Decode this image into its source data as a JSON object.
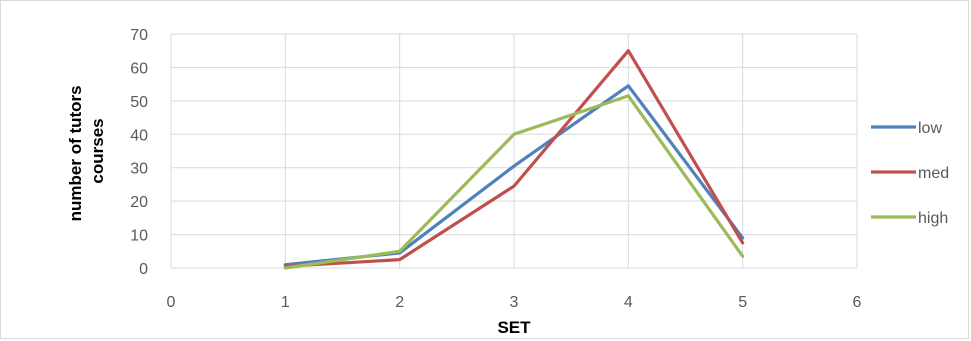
{
  "chart_data": {
    "type": "line",
    "title": "",
    "xlabel": "SET",
    "ylabel_lines": [
      "number of tutors",
      "courses"
    ],
    "xlim": [
      0,
      6
    ],
    "ylim": [
      0,
      70
    ],
    "xticks": [
      0,
      1,
      2,
      3,
      4,
      5,
      6
    ],
    "yticks": [
      0,
      10,
      20,
      30,
      40,
      50,
      60,
      70
    ],
    "grid": true,
    "legend_position": "right",
    "series": [
      {
        "name": "low",
        "color": "#4f81bd",
        "x": [
          1,
          2,
          3,
          4,
          5
        ],
        "y": [
          1,
          4.5,
          30.5,
          54.5,
          9
        ]
      },
      {
        "name": "med",
        "color": "#c0504d",
        "x": [
          1,
          2,
          3,
          4,
          5
        ],
        "y": [
          0.5,
          2.5,
          24.5,
          65,
          7.5
        ]
      },
      {
        "name": "high",
        "color": "#9bbb59",
        "x": [
          1,
          2,
          3,
          4,
          5
        ],
        "y": [
          0,
          5,
          40,
          51.5,
          3.5
        ]
      }
    ]
  }
}
